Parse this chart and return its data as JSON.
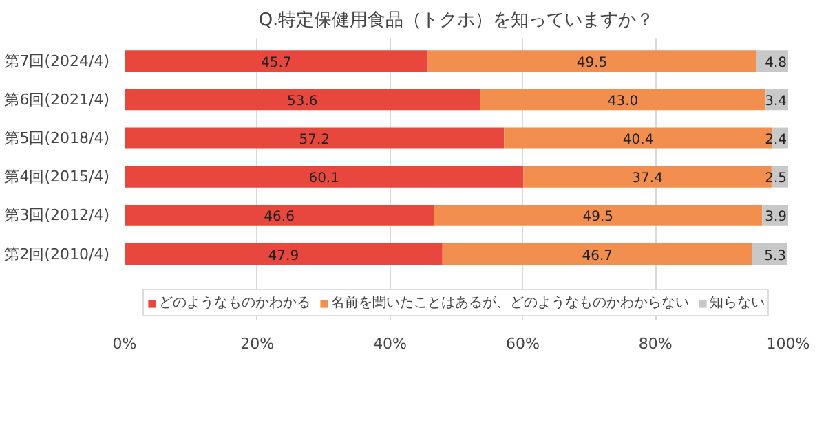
{
  "chart_data": {
    "type": "bar",
    "orientation": "horizontal",
    "stacked": true,
    "title": "Q.特定保健用食品（トクホ）を知っていますか？",
    "categories": [
      "第7回(2024/4)",
      "第6回(2021/4)",
      "第5回(2018/4)",
      "第4回(2015/4)",
      "第3回(2012/4)",
      "第2回(2010/4)"
    ],
    "series": [
      {
        "name": "どのようなものかわかる",
        "color": "#e8473e",
        "values": [
          45.7,
          53.6,
          57.2,
          60.1,
          46.6,
          47.9
        ]
      },
      {
        "name": "名前を聞いたことはあるが、どのようなものかわからない",
        "color": "#f28f4e",
        "values": [
          49.5,
          43.0,
          40.4,
          37.4,
          49.5,
          46.7
        ]
      },
      {
        "name": "知らない",
        "color": "#c8c8c8",
        "values": [
          4.8,
          3.4,
          2.4,
          2.5,
          3.9,
          5.3
        ]
      }
    ],
    "xlim": [
      0,
      100
    ],
    "xticks": [
      {
        "value": 0,
        "label": "0%"
      },
      {
        "value": 20,
        "label": "20%"
      },
      {
        "value": 40,
        "label": "40%"
      },
      {
        "value": 60,
        "label": "60%"
      },
      {
        "value": 80,
        "label": "80%"
      },
      {
        "value": 100,
        "label": "100%"
      }
    ],
    "value_labels": [
      [
        "45.7",
        "53.6",
        "57.2",
        "60.1",
        "46.6",
        "47.9"
      ],
      [
        "49.5",
        "43.0",
        "40.4",
        "37.4",
        "49.5",
        "46.7"
      ],
      [
        "4.8",
        "3.4",
        "2.4",
        "2.5",
        "3.9",
        "5.3"
      ]
    ],
    "grid": "x",
    "legend": "bottom"
  }
}
